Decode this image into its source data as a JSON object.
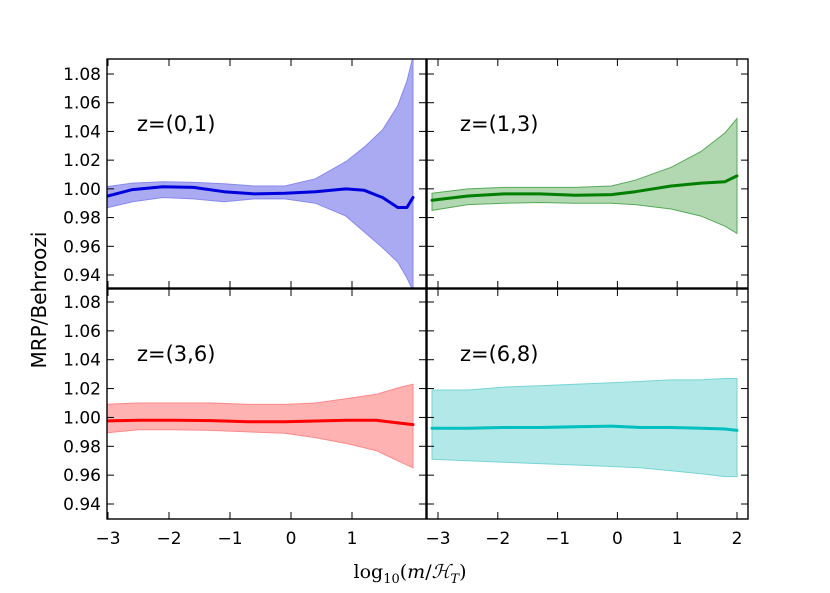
{
  "chart_data": {
    "type": "line",
    "layout": "2x2 grid, shared x and y axes",
    "ylabel": "MRP/Behroozi",
    "xlabel": "log10(m/ℋT)",
    "xlim": [
      -3.2,
      2.2
    ],
    "ylim": [
      0.93,
      1.09
    ],
    "yticks": [
      "0.94",
      "0.96",
      "0.98",
      "1.00",
      "1.02",
      "1.04",
      "1.06",
      "1.08"
    ],
    "xticks_left": [
      "−3",
      "−2",
      "−1",
      "0",
      "1"
    ],
    "xticks_right": [
      "−3",
      "−2",
      "−1",
      "0",
      "1",
      "2"
    ],
    "panels": [
      {
        "label": "z=(0,1)",
        "line_color": "#0000dd",
        "fill_color": "#aaaaf2",
        "edge_color": "#8888ee",
        "x": [
          -3.1,
          -2.6,
          -2.1,
          -1.6,
          -1.1,
          -0.6,
          -0.1,
          0.4,
          0.9,
          1.2,
          1.5,
          1.75,
          1.9,
          2.0
        ],
        "median": [
          0.994,
          0.9995,
          1.0015,
          1.001,
          0.998,
          0.9965,
          0.997,
          0.998,
          1.0,
          0.999,
          0.994,
          0.987,
          0.987,
          0.994
        ],
        "upper": [
          1.001,
          1.004,
          1.005,
          1.0045,
          1.0035,
          1.002,
          1.002,
          1.007,
          1.019,
          1.029,
          1.041,
          1.058,
          1.075,
          1.092
        ],
        "lower": [
          0.986,
          0.991,
          0.994,
          0.993,
          0.991,
          0.993,
          0.993,
          0.99,
          0.981,
          0.97,
          0.959,
          0.949,
          0.938,
          0.929
        ]
      },
      {
        "label": "z=(1,3)",
        "line_color": "#007f00",
        "fill_color": "#b2d8b2",
        "edge_color": "#55aa55",
        "x": [
          -3.1,
          -2.5,
          -1.9,
          -1.3,
          -0.7,
          -0.1,
          0.3,
          0.9,
          1.4,
          1.8,
          2.0
        ],
        "median": [
          0.992,
          0.995,
          0.9965,
          0.9965,
          0.9955,
          0.996,
          0.998,
          1.002,
          1.004,
          1.005,
          1.009
        ],
        "upper": [
          0.997,
          1.0,
          1.001,
          1.001,
          1.001,
          1.002,
          1.006,
          1.015,
          1.026,
          1.039,
          1.049
        ],
        "lower": [
          0.985,
          0.989,
          0.99,
          0.9905,
          0.99,
          0.99,
          0.989,
          0.986,
          0.981,
          0.974,
          0.969
        ]
      },
      {
        "label": "z=(3,6)",
        "line_color": "#ff0000",
        "fill_color": "#ffb2b2",
        "edge_color": "#ff8888",
        "x": [
          -3.1,
          -2.5,
          -1.9,
          -1.3,
          -0.7,
          -0.1,
          0.4,
          0.9,
          1.4,
          1.8,
          2.0
        ],
        "median": [
          0.9975,
          0.998,
          0.998,
          0.9978,
          0.997,
          0.997,
          0.9975,
          0.998,
          0.998,
          0.996,
          0.995
        ],
        "upper": [
          1.009,
          1.01,
          1.01,
          1.01,
          1.009,
          1.009,
          1.01,
          1.013,
          1.016,
          1.021,
          1.023
        ],
        "lower": [
          0.989,
          0.9915,
          0.9915,
          0.991,
          0.99,
          0.989,
          0.986,
          0.982,
          0.977,
          0.969,
          0.965
        ]
      },
      {
        "label": "z=(6,8)",
        "line_color": "#00bfbf",
        "fill_color": "#b2e8e8",
        "edge_color": "#77d4d4",
        "x": [
          -3.1,
          -2.5,
          -1.9,
          -1.3,
          -0.7,
          -0.1,
          0.4,
          0.9,
          1.4,
          1.8,
          2.0
        ],
        "median": [
          0.9925,
          0.9925,
          0.993,
          0.993,
          0.9935,
          0.994,
          0.993,
          0.993,
          0.9925,
          0.992,
          0.991
        ],
        "upper": [
          1.019,
          1.019,
          1.021,
          1.022,
          1.023,
          1.024,
          1.025,
          1.026,
          1.026,
          1.027,
          1.027
        ],
        "lower": [
          0.971,
          0.97,
          0.969,
          0.968,
          0.967,
          0.966,
          0.965,
          0.963,
          0.961,
          0.959,
          0.959
        ]
      }
    ]
  }
}
